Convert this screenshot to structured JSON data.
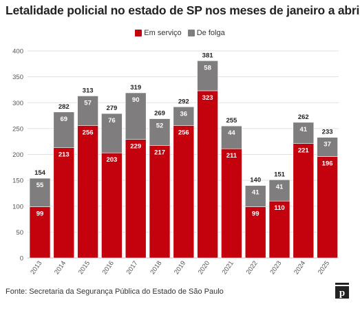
{
  "title": "Letalidade policial no estado de SP nos meses de janeiro a abril",
  "source": "Fonte: Secretaria da Segurança Pública do Estado de São Paulo",
  "colors": {
    "em_servico": "#c4020d",
    "de_folga": "#7f7d7d",
    "grid": "#e1e1e1"
  },
  "chart_data": {
    "type": "bar",
    "stacked": true,
    "categories": [
      "2013",
      "2014",
      "2015",
      "2016",
      "2017",
      "2018",
      "2019",
      "2020",
      "2021",
      "2022",
      "2023",
      "2024",
      "2025"
    ],
    "series": [
      {
        "name": "Em serviço",
        "values": [
          99,
          213,
          256,
          203,
          229,
          217,
          256,
          323,
          211,
          99,
          110,
          221,
          196
        ]
      },
      {
        "name": "De folga",
        "values": [
          55,
          69,
          57,
          76,
          90,
          52,
          36,
          58,
          44,
          41,
          41,
          41,
          37
        ]
      }
    ],
    "totals": [
      154,
      282,
      313,
      279,
      319,
      269,
      292,
      381,
      255,
      140,
      151,
      262,
      233
    ],
    "ylim": [
      0,
      400
    ],
    "yticks": [
      0,
      50,
      100,
      150,
      200,
      250,
      300,
      350,
      400
    ],
    "grid": true,
    "legend_position": "top-center"
  }
}
